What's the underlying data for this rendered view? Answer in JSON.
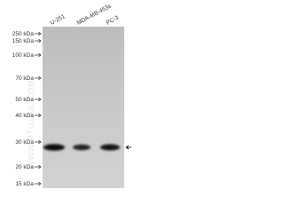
{
  "lanes": [
    "U-251",
    "MDA-MB-453s",
    "PC-3"
  ],
  "markers": [
    "250 kDa",
    "150 kDa",
    "100 kDa",
    "70 kDa",
    "50 kDa",
    "40 kDa",
    "30 kDa",
    "20 kDa",
    "15 kDa"
  ],
  "watermark": "WWW.PTGLAB.COM"
}
